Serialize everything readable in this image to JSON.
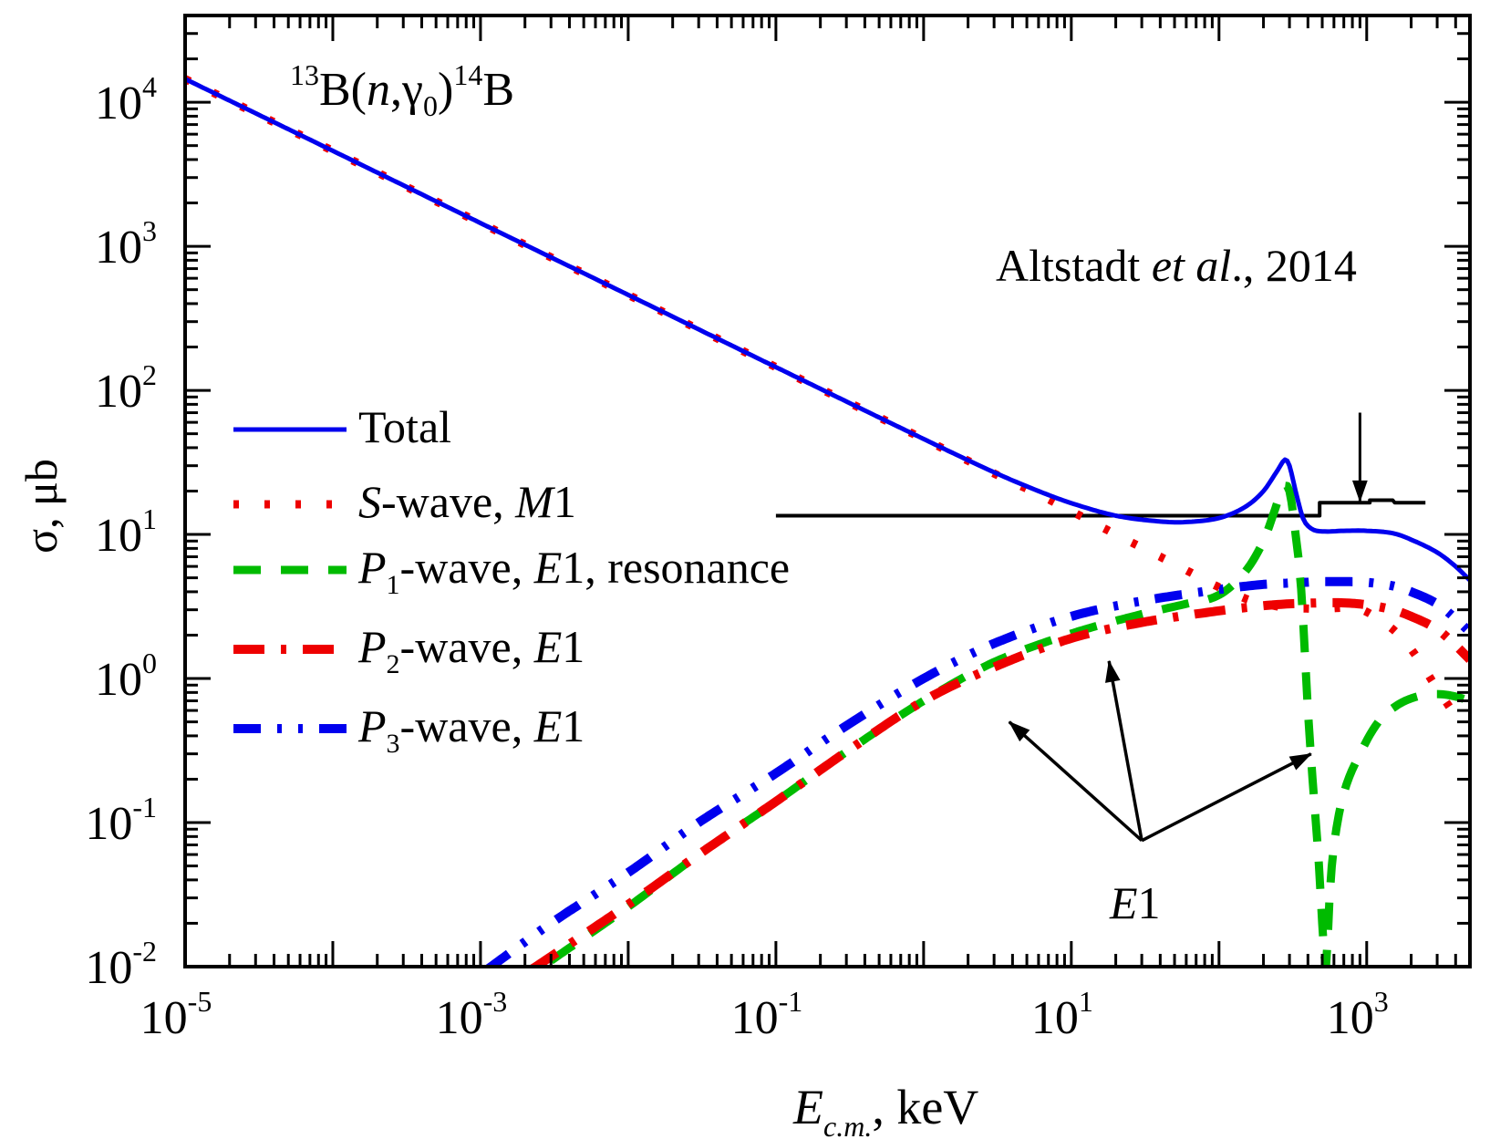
{
  "chart_data": {
    "type": "line",
    "title": "13B(n,γ0)14B",
    "title_parts": {
      "pre_sup": "13",
      "main1": "B(",
      "italic": "n",
      "comma": ",γ",
      "sub": "0",
      "close": ")",
      "post_sup": "14",
      "main2": "B"
    },
    "xlabel": {
      "italic": "E",
      "sub": "c.m.",
      "rest": ", keV"
    },
    "ylabel": "σ, μb",
    "x_scale": "log",
    "y_scale": "log",
    "xlim": [
      1e-05,
      5000
    ],
    "ylim": [
      0.01,
      40000
    ],
    "x_ticks": [
      {
        "value": 1e-05,
        "base": "10",
        "exp": "-5"
      },
      {
        "value": 0.001,
        "base": "10",
        "exp": "-3"
      },
      {
        "value": 0.1,
        "base": "10",
        "exp": "-1"
      },
      {
        "value": 10.0,
        "base": "10",
        "exp": "1"
      },
      {
        "value": 1000.0,
        "base": "10",
        "exp": "3"
      }
    ],
    "y_ticks": [
      {
        "value": 0.01,
        "base": "10",
        "exp": "-2"
      },
      {
        "value": 0.1,
        "base": "10",
        "exp": "-1"
      },
      {
        "value": 1.0,
        "base": "10",
        "exp": "0"
      },
      {
        "value": 10.0,
        "base": "10",
        "exp": "1"
      },
      {
        "value": 100.0,
        "base": "10",
        "exp": "2"
      },
      {
        "value": 1000.0,
        "base": "10",
        "exp": "3"
      },
      {
        "value": 10000.0,
        "base": "10",
        "exp": "4"
      }
    ],
    "grid": false,
    "legend_position": "middle-left",
    "series": [
      {
        "name": "Total",
        "legend": {
          "pre": "",
          "italic1": "",
          "sub": "",
          "mid": "Total",
          "italic2": "",
          "post": ""
        },
        "color": "#0000ee",
        "style": "solid",
        "x": [
          1e-05,
          0.0001,
          0.001,
          0.01,
          0.1,
          1,
          3,
          6,
          10,
          20,
          40,
          60,
          100,
          150,
          200,
          250,
          280,
          300,
          330,
          370,
          420,
          500,
          700,
          1000,
          1500,
          2000,
          3000,
          4000,
          5000
        ],
        "y": [
          14500,
          4600,
          1450,
          460,
          145,
          46,
          27,
          20,
          16.5,
          13.5,
          12.3,
          12.2,
          13,
          15.5,
          20,
          28,
          33,
          30,
          20,
          13,
          11,
          10.5,
          10.6,
          10.6,
          10.2,
          9.2,
          7.5,
          6,
          4.8
        ]
      },
      {
        "name": "S-wave, M1",
        "legend": {
          "pre": "",
          "italic1": "S",
          "sub": "",
          "mid": "-wave, ",
          "italic2": "M",
          "post": "1"
        },
        "color": "#ee0000",
        "style": "dotted",
        "x": [
          1e-05,
          0.0001,
          0.001,
          0.01,
          0.1,
          1,
          3,
          6,
          10,
          20,
          40,
          70,
          100,
          150,
          200,
          300,
          500,
          800,
          1000,
          1500,
          2000,
          3000,
          4000
        ],
        "y": [
          14500,
          4600,
          1450,
          460,
          145,
          46,
          26.5,
          19,
          14.5,
          10,
          7,
          5.2,
          4.3,
          3.6,
          3.3,
          3.1,
          3.05,
          3.1,
          2.9,
          2.2,
          1.6,
          0.85,
          0.55
        ]
      },
      {
        "name": "P1-wave, E1, resonance",
        "legend": {
          "pre": "",
          "italic1": "P",
          "sub": "1",
          "mid": "-wave, ",
          "italic2": "E",
          "post": "1, resonance"
        },
        "color": "#00bb00",
        "style": "dashed",
        "x": [
          0.003,
          0.01,
          0.03,
          0.1,
          0.3,
          1,
          3,
          10,
          30,
          60,
          100,
          150,
          200,
          240,
          270,
          300,
          330,
          360,
          400,
          430,
          470,
          500,
          530,
          560,
          600,
          700,
          900,
          1200,
          1600,
          2200,
          3000,
          4000,
          5000
        ],
        "y": [
          0.011,
          0.026,
          0.06,
          0.14,
          0.31,
          0.7,
          1.3,
          2.05,
          2.8,
          3.3,
          3.8,
          5.5,
          9,
          15,
          21,
          20,
          10,
          4.2,
          0.6,
          0.2,
          0.06,
          0.02,
          0.01,
          0.03,
          0.07,
          0.16,
          0.3,
          0.5,
          0.65,
          0.75,
          0.78,
          0.75,
          0.7
        ]
      },
      {
        "name": "P2-wave, E1",
        "legend": {
          "pre": "",
          "italic1": "P",
          "sub": "2",
          "mid": "-wave, ",
          "italic2": "E",
          "post": "1"
        },
        "color": "#ee0000",
        "style": "dashdot",
        "x": [
          0.0022,
          0.01,
          0.03,
          0.1,
          0.3,
          1,
          3,
          10,
          30,
          100,
          200,
          300,
          500,
          700,
          1000,
          1500,
          2000,
          3000,
          4000,
          5000
        ],
        "y": [
          0.0095,
          0.027,
          0.06,
          0.14,
          0.31,
          0.7,
          1.2,
          1.9,
          2.45,
          2.95,
          3.2,
          3.3,
          3.35,
          3.35,
          3.25,
          3.0,
          2.7,
          2.2,
          1.7,
          1.35
        ]
      },
      {
        "name": "P3-wave, E1",
        "legend": {
          "pre": "",
          "italic1": "P",
          "sub": "3",
          "mid": "-wave, ",
          "italic2": "E",
          "post": "1"
        },
        "color": "#0000ee",
        "style": "dashdotdot",
        "x": [
          0.0011,
          0.003,
          0.01,
          0.03,
          0.1,
          0.3,
          1,
          3,
          10,
          30,
          100,
          200,
          300,
          500,
          800,
          1000,
          1500,
          2000,
          3000,
          4000,
          5000
        ],
        "y": [
          0.0095,
          0.02,
          0.045,
          0.1,
          0.22,
          0.47,
          1.0,
          1.75,
          2.7,
          3.45,
          4.15,
          4.5,
          4.6,
          4.7,
          4.7,
          4.65,
          4.4,
          4.0,
          3.3,
          2.6,
          2.1
        ]
      },
      {
        "name": "Altstadt et al., 2014",
        "color": "#000000",
        "style": "step",
        "x": [
          0.1,
          480,
          480,
          1050,
          1050,
          1100,
          1500,
          1550,
          2500
        ],
        "y": [
          13.5,
          13.5,
          16.6,
          16.6,
          17.3,
          17.3,
          17.3,
          16.6,
          16.6
        ]
      }
    ],
    "annotations": [
      {
        "text": {
          "pre": "Altstadt ",
          "italic": "et al",
          "post": "., 2014"
        },
        "arrow_from": {
          "x": 900,
          "y": 70
        },
        "arrow_to": {
          "x": 900,
          "y": 17
        }
      },
      {
        "text": {
          "italic": "E",
          "post": "1"
        },
        "arrow_origin": {
          "x": 30,
          "y": 0.075
        },
        "arrows_to": [
          {
            "x": 3.8,
            "y": 0.5
          },
          {
            "x": 18,
            "y": 1.32
          },
          {
            "x": 420,
            "y": 0.3
          }
        ]
      }
    ]
  }
}
